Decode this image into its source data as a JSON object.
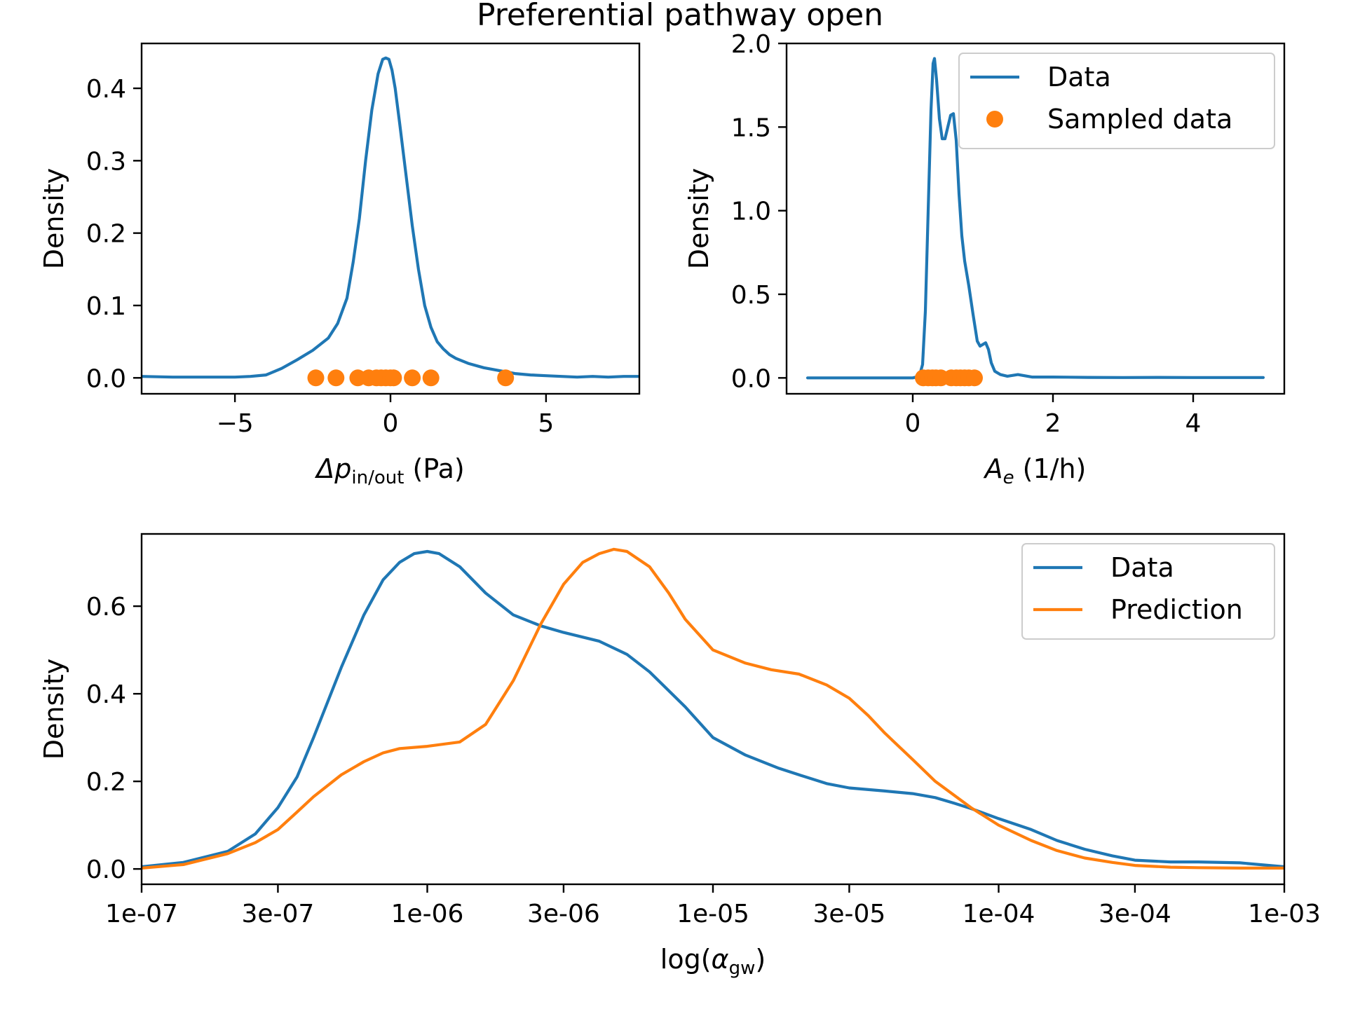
{
  "figure": {
    "title": "Preferential pathway open"
  },
  "colors": {
    "data": "#1f77b4",
    "prediction": "#ff7f0e",
    "sampled": "#ff7f0e"
  },
  "chart_data": [
    {
      "type": "line",
      "ylabel": "Density",
      "xlabel_parts": {
        "base": "Δp",
        "sub": "in/out",
        "unit": " (Pa)"
      },
      "xlim": [
        -8,
        8
      ],
      "ylim": [
        -0.022,
        0.462
      ],
      "xticks": [
        -5,
        0,
        5
      ],
      "xtick_labels": [
        "−5",
        "0",
        "5"
      ],
      "yticks": [
        0.0,
        0.1,
        0.2,
        0.3,
        0.4
      ],
      "ytick_labels": [
        "0.0",
        "0.1",
        "0.2",
        "0.3",
        "0.4"
      ],
      "series": [
        {
          "kind": "line",
          "color": "#1f77b4",
          "x": [
            -8,
            -7,
            -6,
            -5,
            -4.5,
            -4,
            -3.5,
            -3,
            -2.5,
            -2,
            -1.7,
            -1.4,
            -1.2,
            -1.0,
            -0.8,
            -0.6,
            -0.4,
            -0.25,
            -0.15,
            -0.05,
            0.05,
            0.15,
            0.3,
            0.5,
            0.7,
            0.9,
            1.1,
            1.3,
            1.5,
            1.7,
            1.9,
            2.1,
            2.5,
            3.0,
            3.5,
            4.0,
            4.5,
            5.0,
            5.5,
            6.0,
            6.5,
            7.0,
            7.5,
            8.0
          ],
          "y": [
            0.002,
            0.001,
            0.001,
            0.001,
            0.002,
            0.004,
            0.013,
            0.025,
            0.038,
            0.055,
            0.075,
            0.11,
            0.16,
            0.22,
            0.3,
            0.37,
            0.42,
            0.44,
            0.442,
            0.44,
            0.425,
            0.4,
            0.35,
            0.28,
            0.21,
            0.15,
            0.1,
            0.07,
            0.05,
            0.04,
            0.032,
            0.027,
            0.02,
            0.014,
            0.01,
            0.006,
            0.004,
            0.003,
            0.002,
            0.001,
            0.002,
            0.001,
            0.002,
            0.002
          ]
        },
        {
          "kind": "points",
          "color": "#ff7f0e",
          "x": [
            -2.4,
            -1.75,
            -1.05,
            -0.7,
            -0.45,
            -0.3,
            -0.15,
            0.0,
            0.1,
            0.7,
            1.3,
            3.7
          ],
          "y": [
            0,
            0,
            0,
            0,
            0,
            0,
            0,
            0,
            0,
            0,
            0,
            0
          ]
        }
      ]
    },
    {
      "type": "line",
      "ylabel": "Density",
      "xlabel_parts": {
        "base": "A",
        "sub": "e",
        "unit": " (1/h)"
      },
      "xlim": [
        -1.8,
        5.3
      ],
      "ylim": [
        -0.095,
        2.0
      ],
      "xticks": [
        0,
        2,
        4
      ],
      "xtick_labels": [
        "0",
        "2",
        "4"
      ],
      "yticks": [
        0.0,
        0.5,
        1.0,
        1.5,
        2.0
      ],
      "ytick_labels": [
        "0.0",
        "0.5",
        "1.0",
        "1.5",
        "2.0"
      ],
      "legend": {
        "position": "upper right",
        "entries": [
          {
            "label": "Data",
            "marker": "line",
            "color": "#1f77b4"
          },
          {
            "label": "Sampled data",
            "marker": "dot",
            "color": "#ff7f0e"
          }
        ]
      },
      "series": [
        {
          "kind": "line",
          "name": "Data",
          "color": "#1f77b4",
          "x": [
            -1.5,
            -0.5,
            0.0,
            0.05,
            0.1,
            0.14,
            0.18,
            0.22,
            0.26,
            0.29,
            0.31,
            0.34,
            0.38,
            0.42,
            0.46,
            0.5,
            0.54,
            0.58,
            0.62,
            0.66,
            0.7,
            0.74,
            0.8,
            0.86,
            0.92,
            0.96,
            1.0,
            1.04,
            1.08,
            1.12,
            1.17,
            1.25,
            1.35,
            1.5,
            1.7,
            2.0,
            2.5,
            3.0,
            3.5,
            4.0,
            4.5,
            5.0
          ],
          "y": [
            0,
            0,
            0,
            0.005,
            0.02,
            0.08,
            0.4,
            1.0,
            1.6,
            1.88,
            1.91,
            1.78,
            1.55,
            1.43,
            1.43,
            1.5,
            1.57,
            1.58,
            1.42,
            1.1,
            0.85,
            0.7,
            0.55,
            0.38,
            0.22,
            0.19,
            0.2,
            0.21,
            0.17,
            0.09,
            0.04,
            0.02,
            0.01,
            0.02,
            0.005,
            0.005,
            0.003,
            0.002,
            0.003,
            0.002,
            0.002,
            0.002
          ]
        },
        {
          "kind": "points",
          "name": "Sampled data",
          "color": "#ff7f0e",
          "x": [
            0.15,
            0.22,
            0.28,
            0.33,
            0.4,
            0.55,
            0.62,
            0.68,
            0.74,
            0.8,
            0.88
          ],
          "y": [
            0,
            0,
            0,
            0,
            0,
            0,
            0,
            0,
            0,
            0,
            0
          ]
        }
      ]
    },
    {
      "type": "line",
      "ylabel": "Density",
      "xlabel_parts": {
        "pre": "log(",
        "base": "α",
        "sub": "gw",
        "post": ")"
      },
      "x_scale": "log10",
      "xlim": [
        1e-07,
        0.001
      ],
      "ylim": [
        -0.035,
        0.765
      ],
      "xticks": [
        1e-07,
        3e-07,
        1e-06,
        3e-06,
        1e-05,
        3e-05,
        0.0001,
        0.0003,
        0.001
      ],
      "xtick_labels": [
        "1e-07",
        "3e-07",
        "1e-06",
        "3e-06",
        "1e-05",
        "3e-05",
        "1e-04",
        "3e-04",
        "1e-03"
      ],
      "yticks": [
        0.0,
        0.2,
        0.4,
        0.6
      ],
      "ytick_labels": [
        "0.0",
        "0.2",
        "0.4",
        "0.6"
      ],
      "legend": {
        "position": "upper right",
        "entries": [
          {
            "label": "Data",
            "marker": "line",
            "color": "#1f77b4"
          },
          {
            "label": "Prediction",
            "marker": "line",
            "color": "#ff7f0e"
          }
        ]
      },
      "series": [
        {
          "kind": "line",
          "name": "Data",
          "color": "#1f77b4",
          "x": [
            1e-07,
            1.4e-07,
            2e-07,
            2.5e-07,
            3e-07,
            3.5e-07,
            4e-07,
            5e-07,
            6e-07,
            7e-07,
            8e-07,
            9e-07,
            1e-06,
            1.1e-06,
            1.3e-06,
            1.6e-06,
            2e-06,
            2.5e-06,
            3e-06,
            4e-06,
            5e-06,
            6e-06,
            8e-06,
            1e-05,
            1.3e-05,
            1.7e-05,
            2e-05,
            2.5e-05,
            3e-05,
            4e-05,
            5e-05,
            6e-05,
            7e-05,
            8e-05,
            0.0001,
            0.00013,
            0.00016,
            0.0002,
            0.00025,
            0.0003,
            0.0004,
            0.0005,
            0.0007,
            0.001
          ],
          "y": [
            0.005,
            0.015,
            0.04,
            0.08,
            0.14,
            0.21,
            0.3,
            0.46,
            0.58,
            0.66,
            0.7,
            0.72,
            0.725,
            0.72,
            0.69,
            0.63,
            0.58,
            0.555,
            0.54,
            0.52,
            0.49,
            0.45,
            0.37,
            0.3,
            0.26,
            0.23,
            0.215,
            0.195,
            0.185,
            0.178,
            0.172,
            0.163,
            0.15,
            0.138,
            0.115,
            0.09,
            0.065,
            0.045,
            0.03,
            0.02,
            0.016,
            0.016,
            0.014,
            0.005
          ]
        },
        {
          "kind": "line",
          "name": "Prediction",
          "color": "#ff7f0e",
          "x": [
            1e-07,
            1.4e-07,
            2e-07,
            2.5e-07,
            3e-07,
            3.5e-07,
            4e-07,
            5e-07,
            6e-07,
            7e-07,
            8e-07,
            1e-06,
            1.3e-06,
            1.6e-06,
            2e-06,
            2.5e-06,
            3e-06,
            3.5e-06,
            4e-06,
            4.5e-06,
            5e-06,
            6e-06,
            7e-06,
            8e-06,
            1e-05,
            1.3e-05,
            1.6e-05,
            2e-05,
            2.5e-05,
            3e-05,
            3.5e-05,
            4e-05,
            5e-05,
            6e-05,
            8e-05,
            0.0001,
            0.00013,
            0.00016,
            0.0002,
            0.00025,
            0.0003,
            0.0004,
            0.0005,
            0.0007,
            0.001
          ],
          "y": [
            0.002,
            0.01,
            0.035,
            0.06,
            0.09,
            0.13,
            0.165,
            0.215,
            0.245,
            0.265,
            0.275,
            0.28,
            0.29,
            0.33,
            0.43,
            0.56,
            0.65,
            0.7,
            0.72,
            0.73,
            0.725,
            0.69,
            0.63,
            0.57,
            0.5,
            0.47,
            0.455,
            0.445,
            0.42,
            0.39,
            0.35,
            0.31,
            0.25,
            0.2,
            0.14,
            0.1,
            0.065,
            0.042,
            0.025,
            0.015,
            0.008,
            0.004,
            0.003,
            0.002,
            0.002
          ]
        }
      ]
    }
  ]
}
